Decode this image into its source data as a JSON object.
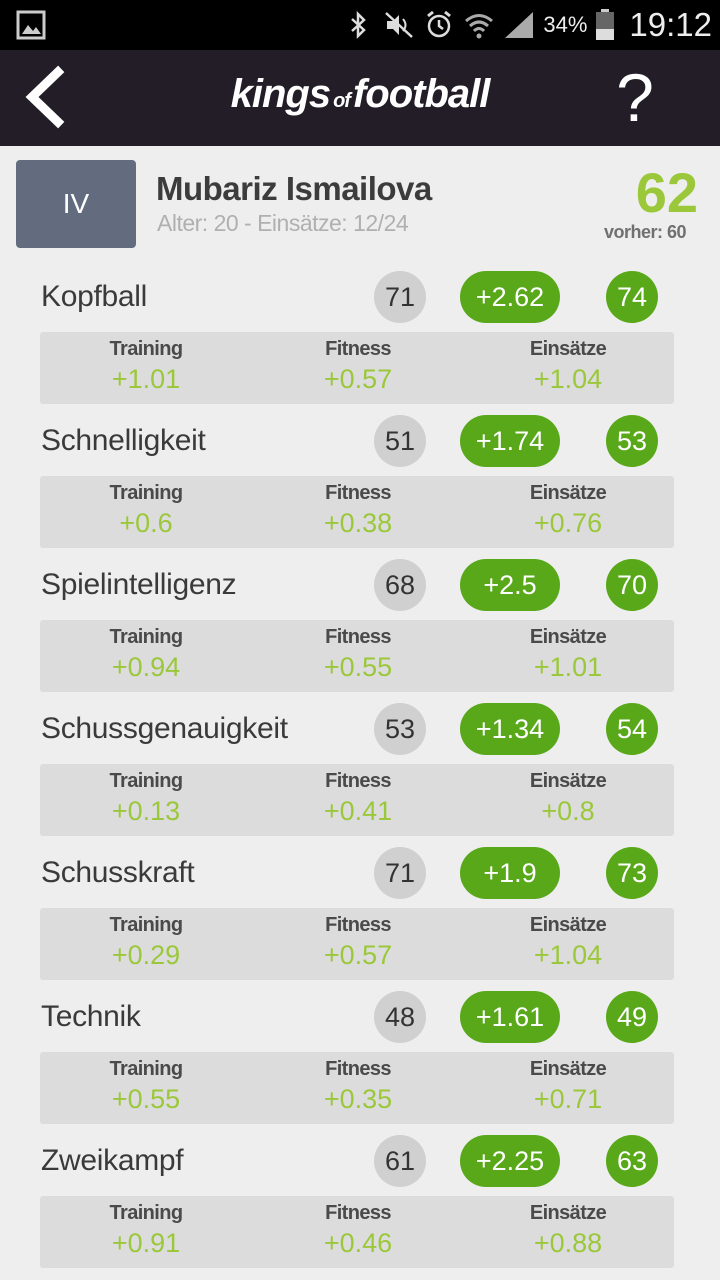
{
  "statusbar": {
    "battery_pct": "34%",
    "time": "19:12"
  },
  "header": {
    "logo_left": "kings",
    "logo_mid": "of",
    "logo_right": "football",
    "help_label": "?"
  },
  "player": {
    "position": "IV",
    "name": "Mubariz Ismailova",
    "meta": "Alter: 20 - Einsätze: 12/24",
    "score": "62",
    "previous": "vorher: 60"
  },
  "labels": {
    "training": "Training",
    "fitness": "Fitness",
    "einsaetze": "Einsätze"
  },
  "attributes": [
    {
      "name": "Kopfball",
      "old": "71",
      "delta": "+2.62",
      "new": "74",
      "training": "+1.01",
      "fitness": "+0.57",
      "einsaetze": "+1.04"
    },
    {
      "name": "Schnelligkeit",
      "old": "51",
      "delta": "+1.74",
      "new": "53",
      "training": "+0.6",
      "fitness": "+0.38",
      "einsaetze": "+0.76"
    },
    {
      "name": "Spielintelligenz",
      "old": "68",
      "delta": "+2.5",
      "new": "70",
      "training": "+0.94",
      "fitness": "+0.55",
      "einsaetze": "+1.01"
    },
    {
      "name": "Schussgenauigkeit",
      "old": "53",
      "delta": "+1.34",
      "new": "54",
      "training": "+0.13",
      "fitness": "+0.41",
      "einsaetze": "+0.8"
    },
    {
      "name": "Schusskraft",
      "old": "71",
      "delta": "+1.9",
      "new": "73",
      "training": "+0.29",
      "fitness": "+0.57",
      "einsaetze": "+1.04"
    },
    {
      "name": "Technik",
      "old": "48",
      "delta": "+1.61",
      "new": "49",
      "training": "+0.55",
      "fitness": "+0.35",
      "einsaetze": "+0.71"
    },
    {
      "name": "Zweikampf",
      "old": "61",
      "delta": "+2.25",
      "new": "63",
      "training": "+0.91",
      "fitness": "+0.46",
      "einsaetze": "+0.88"
    }
  ]
}
